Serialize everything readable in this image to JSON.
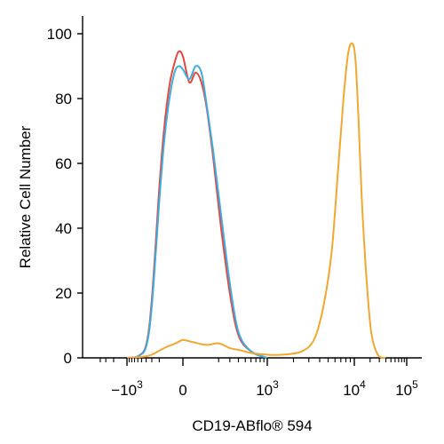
{
  "chart_data": {
    "type": "line",
    "title": "",
    "xlabel": "CD19-ABflo® 594",
    "ylabel": "Relative Cell Number",
    "x_scale": "biexponential",
    "ylim": [
      0,
      100
    ],
    "y_ticks": [
      "0",
      "20",
      "40",
      "60",
      "80",
      "100"
    ],
    "x_ticks": [
      {
        "base": "−10",
        "exp": "3",
        "value": -1000
      },
      {
        "base": "0",
        "exp": "",
        "value": 0
      },
      {
        "base": "10",
        "exp": "3",
        "value": 1000
      },
      {
        "base": "10",
        "exp": "4",
        "value": 10000
      },
      {
        "base": "10",
        "exp": "5",
        "value": 100000
      }
    ],
    "grid": false,
    "legend": "none",
    "series": [
      {
        "color": "#e8453c",
        "points": [
          [
            -1000,
            0
          ],
          [
            -600,
            0.5
          ],
          [
            -400,
            4
          ],
          [
            -300,
            18
          ],
          [
            -200,
            52
          ],
          [
            -150,
            70
          ],
          [
            -100,
            84
          ],
          [
            -60,
            91
          ],
          [
            -30,
            94.5
          ],
          [
            0,
            93
          ],
          [
            30,
            85
          ],
          [
            60,
            88
          ],
          [
            90,
            85
          ],
          [
            120,
            77
          ],
          [
            160,
            62
          ],
          [
            220,
            40
          ],
          [
            300,
            20
          ],
          [
            400,
            7
          ],
          [
            600,
            2
          ],
          [
            1000,
            0
          ]
        ]
      },
      {
        "color": "#3aaee0",
        "points": [
          [
            -1000,
            0
          ],
          [
            -600,
            0.5
          ],
          [
            -400,
            3.5
          ],
          [
            -300,
            16
          ],
          [
            -200,
            48
          ],
          [
            -150,
            66
          ],
          [
            -100,
            80
          ],
          [
            -60,
            88
          ],
          [
            -30,
            90
          ],
          [
            0,
            89
          ],
          [
            30,
            86
          ],
          [
            60,
            90
          ],
          [
            90,
            88
          ],
          [
            120,
            78
          ],
          [
            160,
            64
          ],
          [
            220,
            44
          ],
          [
            300,
            23
          ],
          [
            400,
            8
          ],
          [
            600,
            2
          ],
          [
            1000,
            0
          ]
        ]
      },
      {
        "color": "#f0a830",
        "points": [
          [
            -1000,
            0
          ],
          [
            -500,
            0.3
          ],
          [
            -300,
            1
          ],
          [
            -150,
            3
          ],
          [
            -50,
            4.5
          ],
          [
            0,
            5.5
          ],
          [
            50,
            4.8
          ],
          [
            120,
            4
          ],
          [
            200,
            4.5
          ],
          [
            300,
            3
          ],
          [
            400,
            2.5
          ],
          [
            600,
            1.5
          ],
          [
            1000,
            1
          ],
          [
            1500,
            1
          ],
          [
            2500,
            2
          ],
          [
            3500,
            6
          ],
          [
            4500,
            17
          ],
          [
            5500,
            33
          ],
          [
            6500,
            58
          ],
          [
            7500,
            80
          ],
          [
            8500,
            94
          ],
          [
            9500,
            97
          ],
          [
            10500,
            92
          ],
          [
            12000,
            74
          ],
          [
            14000,
            48
          ],
          [
            17000,
            25
          ],
          [
            21000,
            8
          ],
          [
            28000,
            1
          ],
          [
            40000,
            0
          ]
        ]
      }
    ]
  }
}
